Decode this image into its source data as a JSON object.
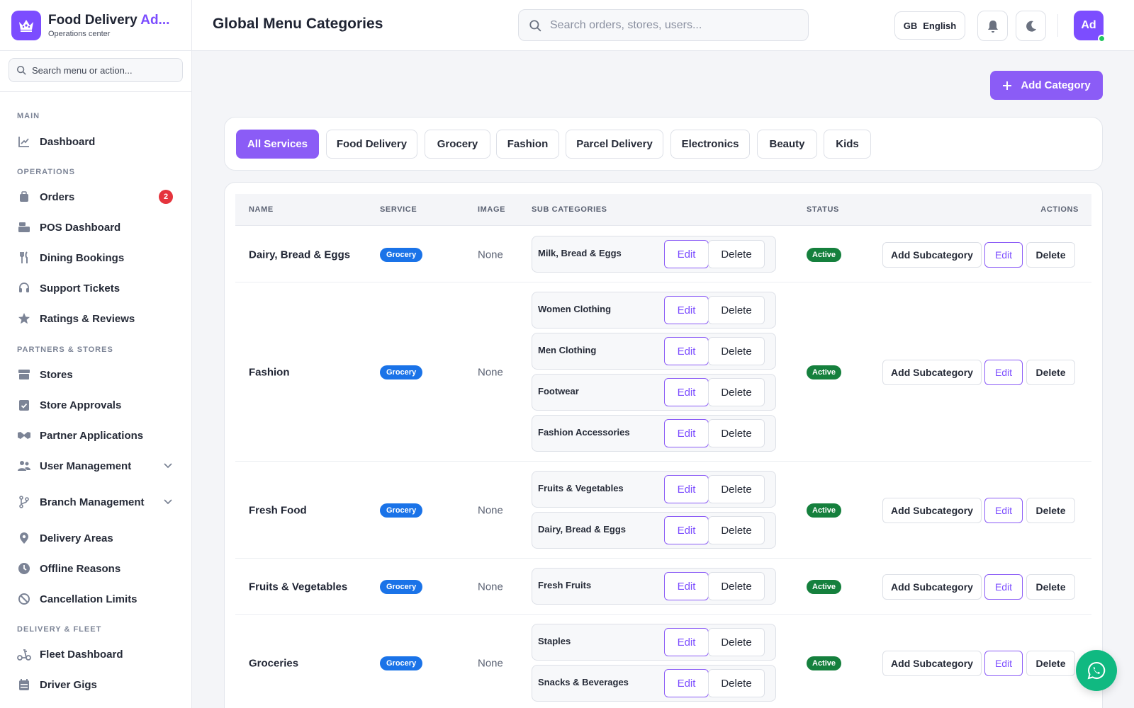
{
  "brand": {
    "title_main": "Food Delivery ",
    "title_accent": "Ad...",
    "subtitle": "Operations center"
  },
  "sidebar": {
    "search_placeholder": "Search menu or action...",
    "sections": {
      "main": "MAIN",
      "operations": "OPERATIONS",
      "partners": "PARTNERS & STORES",
      "delivery": "DELIVERY & FLEET"
    },
    "items": {
      "dashboard": "Dashboard",
      "orders": "Orders",
      "orders_badge": "2",
      "pos": "POS Dashboard",
      "dining": "Dining Bookings",
      "support": "Support Tickets",
      "ratings": "Ratings & Reviews",
      "stores": "Stores",
      "approvals": "Store Approvals",
      "partner_apps": "Partner Applications",
      "user_mgmt": "User Management",
      "branch_mgmt": "Branch Management",
      "delivery_areas": "Delivery Areas",
      "offline": "Offline Reasons",
      "cancellation": "Cancellation Limits",
      "fleet": "Fleet Dashboard",
      "gigs": "Driver Gigs"
    }
  },
  "header": {
    "title": "Global Menu Categories",
    "search_placeholder": "Search orders, stores, users...",
    "lang_code": "GB",
    "lang_label": "English",
    "avatar": "Ad"
  },
  "toolbar": {
    "add_category": "Add Category"
  },
  "filters": [
    "All Services",
    "Food Delivery",
    "Grocery",
    "Fashion",
    "Parcel Delivery",
    "Electronics",
    "Beauty",
    "Kids"
  ],
  "table": {
    "headers": {
      "name": "NAME",
      "service": "SERVICE",
      "image": "IMAGE",
      "subs": "SUB CATEGORIES",
      "status": "STATUS",
      "actions": "ACTIONS"
    },
    "buttons": {
      "edit": "Edit",
      "delete": "Delete",
      "add_sub": "Add Subcategory"
    },
    "rows": [
      {
        "name": "Dairy, Bread & Eggs",
        "service": "Grocery",
        "image": "None",
        "subs": [
          "Milk, Bread & Eggs"
        ],
        "status": "Active"
      },
      {
        "name": "Fashion",
        "service": "Grocery",
        "image": "None",
        "subs": [
          "Women Clothing",
          "Men Clothing",
          "Footwear",
          "Fashion Accessories"
        ],
        "status": "Active"
      },
      {
        "name": "Fresh Food",
        "service": "Grocery",
        "image": "None",
        "subs": [
          "Fruits & Vegetables",
          "Dairy, Bread & Eggs"
        ],
        "status": "Active"
      },
      {
        "name": "Fruits & Vegetables",
        "service": "Grocery",
        "image": "None",
        "subs": [
          "Fresh Fruits"
        ],
        "status": "Active"
      },
      {
        "name": "Groceries",
        "service": "Grocery",
        "image": "None",
        "subs": [
          "Staples",
          "Snacks & Beverages"
        ],
        "status": "Active"
      }
    ]
  },
  "colors": {
    "accent": "#8b5cf6",
    "service_badge": "#1a73e8",
    "status_active": "#15803d",
    "whatsapp": "#10b981"
  }
}
